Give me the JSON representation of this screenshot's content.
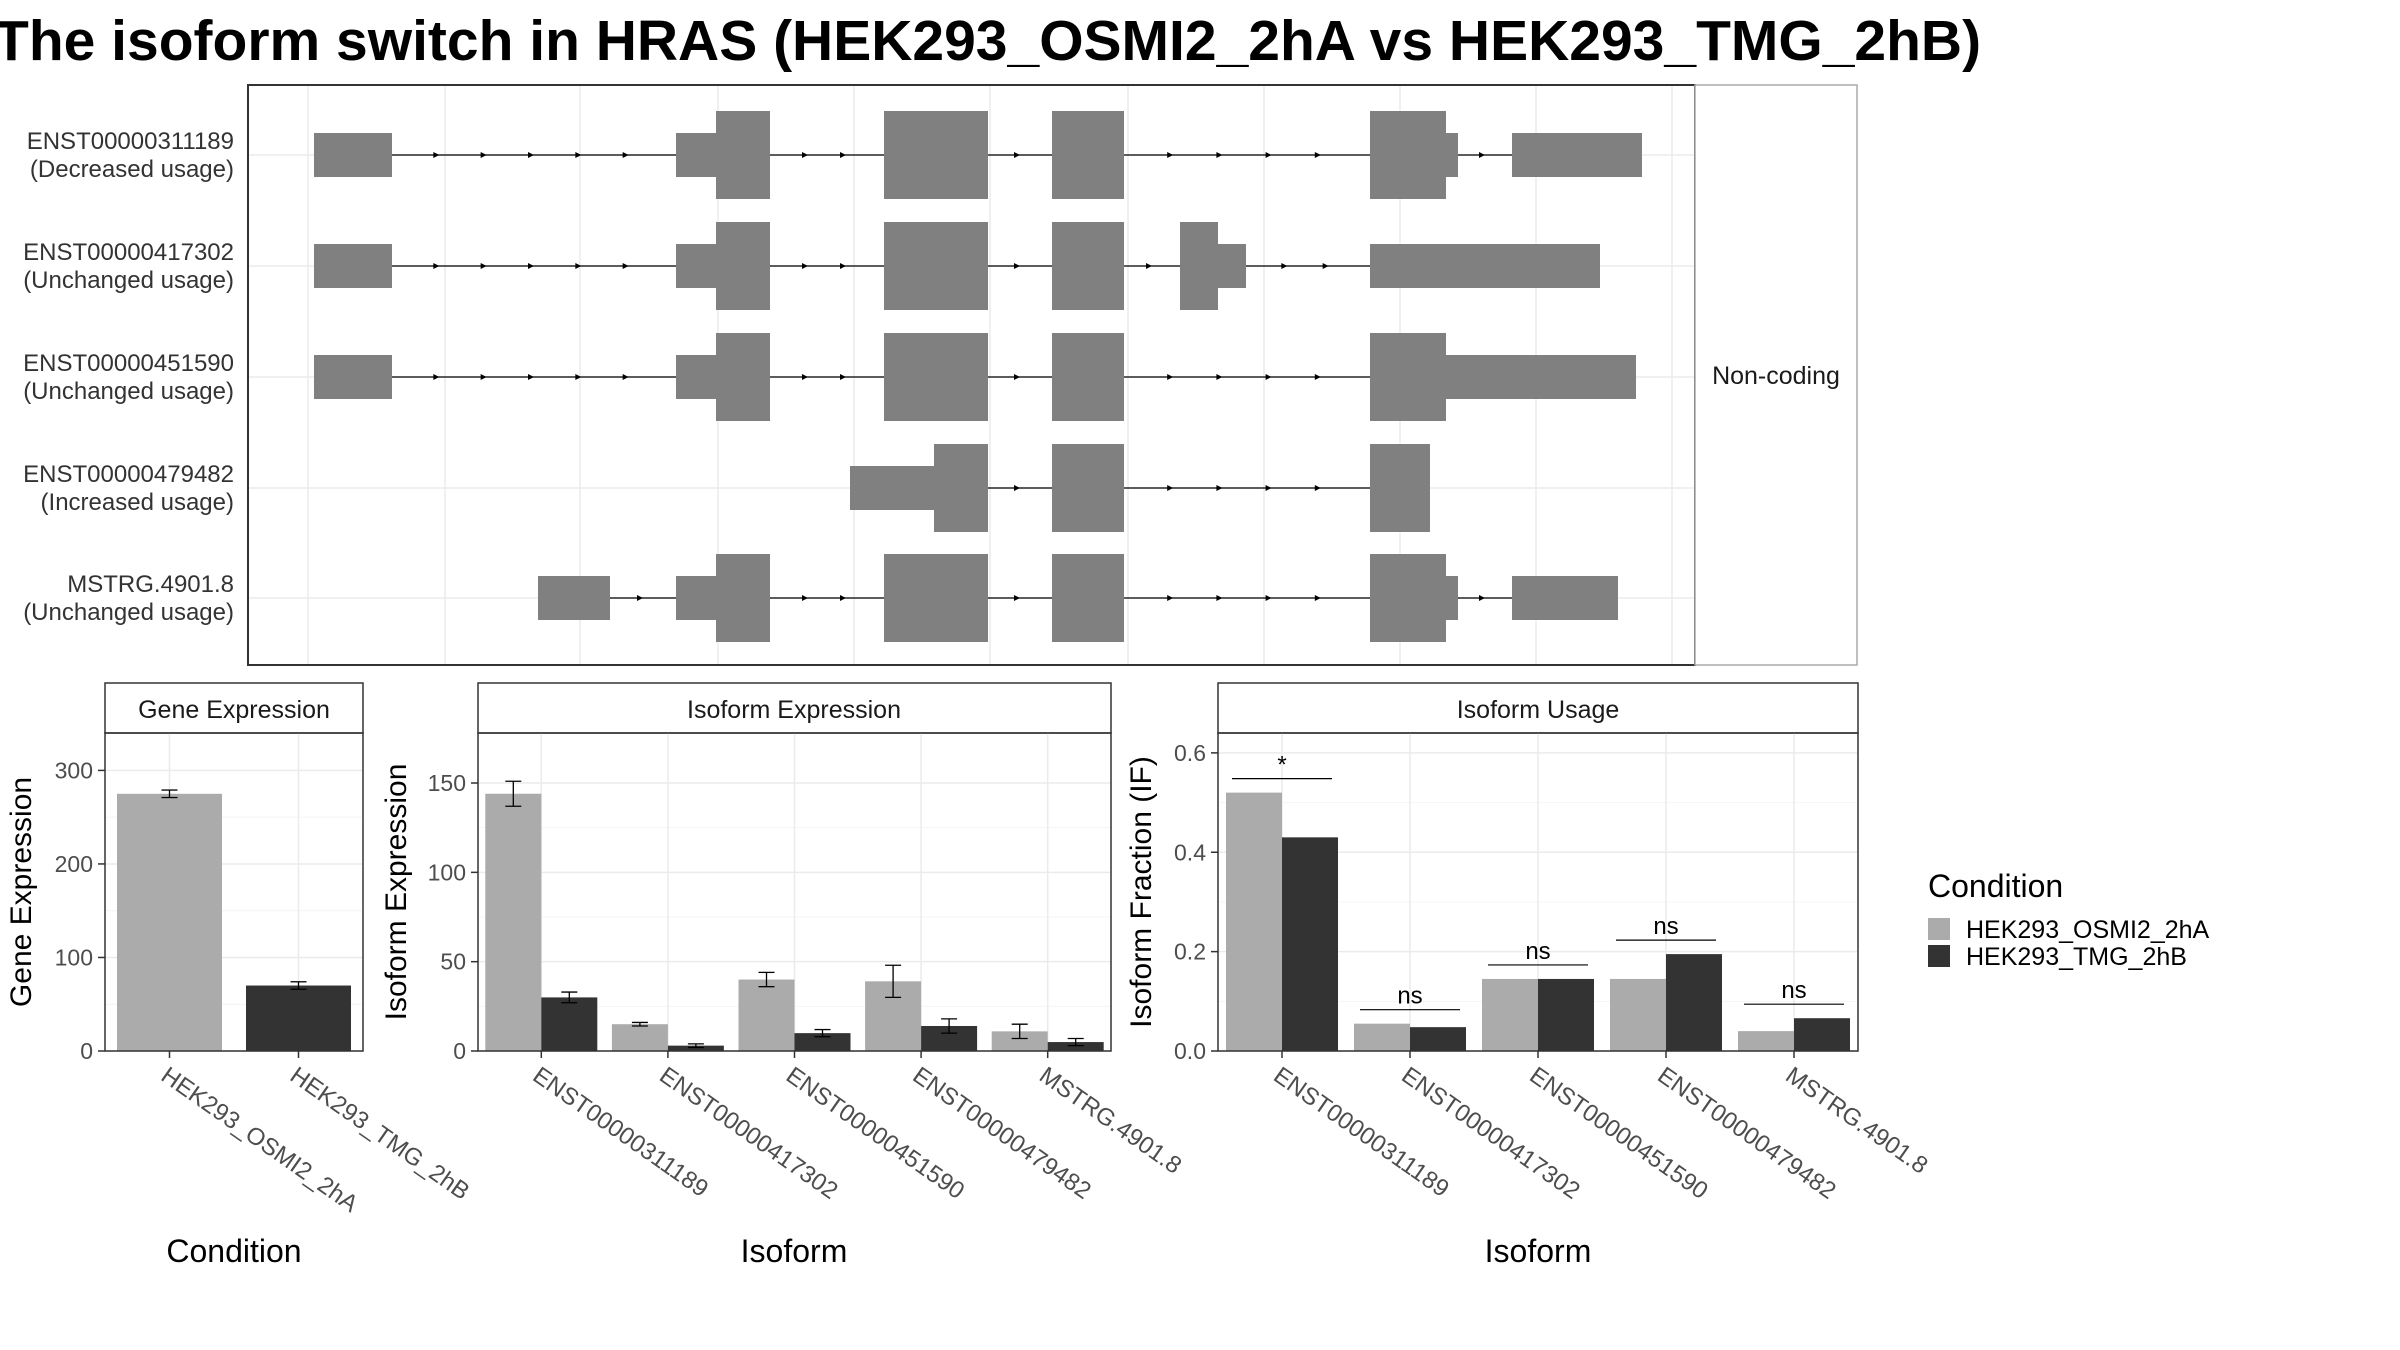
{
  "title": "The isoform switch in HRAS (HEK293_OSMI2_2hA vs HEK293_TMG_2hB)",
  "colors": {
    "cond1": "#ababab",
    "cond2": "#333333",
    "exon": "#808080",
    "grid": "#ebebeb"
  },
  "chart_data": [
    {
      "type": "isoform_structure",
      "strip_label": "Non-coding",
      "isoforms": [
        {
          "id": "ENST00000311189",
          "usage": "(Decreased usage)"
        },
        {
          "id": "ENST00000417302",
          "usage": "(Unchanged usage)"
        },
        {
          "id": "ENST00000451590",
          "usage": "(Unchanged usage)"
        },
        {
          "id": "ENST00000479482",
          "usage": "(Increased usage)"
        },
        {
          "id": "MSTRG.4901.8",
          "usage": "(Unchanged usage)"
        }
      ]
    },
    {
      "type": "bar",
      "title": "Gene Expression",
      "xlabel": "Condition",
      "ylabel": "Gene Expression",
      "ylim": [
        0,
        340
      ],
      "yticks": [
        0,
        100,
        200,
        300
      ],
      "categories": [
        "HEK293_OSMI2_2hA",
        "HEK293_TMG_2hB"
      ],
      "series": [
        {
          "values": [
            275,
            70
          ],
          "errors": [
            4,
            4
          ]
        }
      ]
    },
    {
      "type": "bar",
      "title": "Isoform Expression",
      "xlabel": "Isoform",
      "ylabel": "Isoform Expression",
      "ylim": [
        0,
        178
      ],
      "yticks": [
        0,
        50,
        100,
        150
      ],
      "categories": [
        "ENST00000311189",
        "ENST00000417302",
        "ENST00000451590",
        "ENST00000479482",
        "MSTRG.4901.8"
      ],
      "series": [
        {
          "name": "HEK293_OSMI2_2hA",
          "values": [
            144,
            15,
            40,
            39,
            11
          ],
          "errors": [
            7,
            1,
            4,
            9,
            4
          ]
        },
        {
          "name": "HEK293_TMG_2hB",
          "values": [
            30,
            3,
            10,
            14,
            5
          ],
          "errors": [
            3,
            1,
            2,
            4,
            2
          ]
        }
      ]
    },
    {
      "type": "bar",
      "title": "Isoform Usage",
      "xlabel": "Isoform",
      "ylabel": "Isoform Fraction (IF)",
      "ylim": [
        0,
        0.64
      ],
      "yticks": [
        "0.0",
        "0.2",
        "0.4",
        "0.6"
      ],
      "categories": [
        "ENST00000311189",
        "ENST00000417302",
        "ENST00000451590",
        "ENST00000479482",
        "MSTRG.4901.8"
      ],
      "series": [
        {
          "name": "HEK293_OSMI2_2hA",
          "values": [
            0.52,
            0.055,
            0.145,
            0.145,
            0.04
          ]
        },
        {
          "name": "HEK293_TMG_2hB",
          "values": [
            0.43,
            0.048,
            0.145,
            0.195,
            0.066
          ]
        }
      ],
      "significance": [
        "*",
        "ns",
        "ns",
        "ns",
        "ns"
      ]
    }
  ],
  "legend": {
    "title": "Condition",
    "items": [
      "HEK293_OSMI2_2hA",
      "HEK293_TMG_2hB"
    ]
  }
}
